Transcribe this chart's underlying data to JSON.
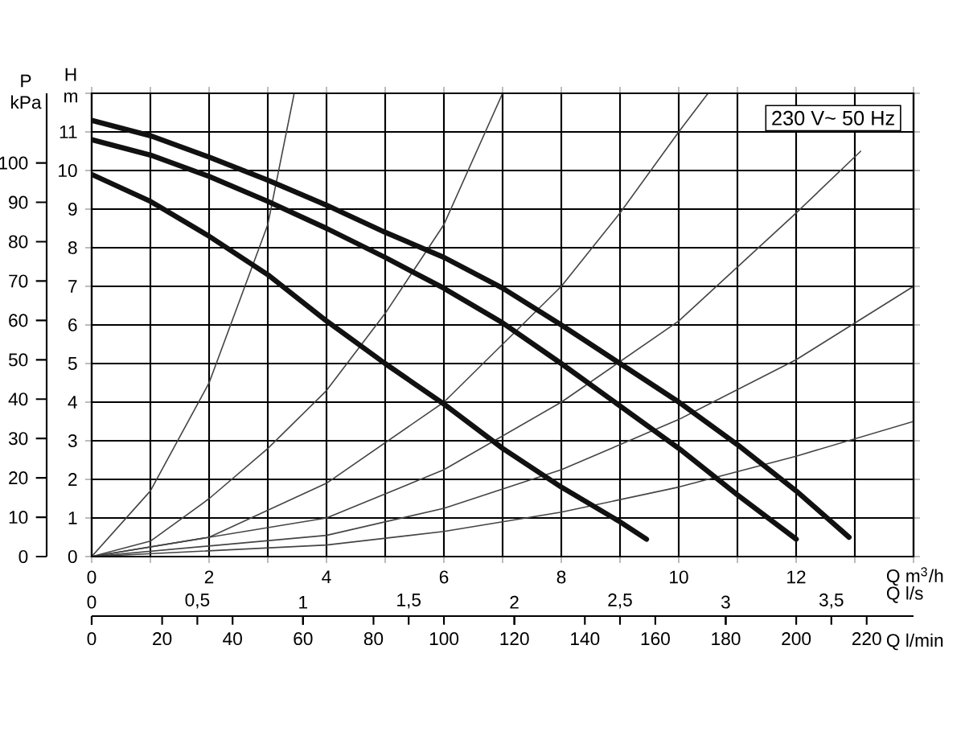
{
  "chart_data": [
    {
      "type": "line",
      "xlabel": "Q m$^{3}$/h",
      "ylabel": "H m",
      "y2label": "P kPa",
      "x2label": "Q l/s",
      "xlim": [
        0,
        14
      ],
      "ylim": [
        0,
        12
      ],
      "y2lim": [
        0,
        117.7
      ],
      "x2lim": [
        0,
        3.889
      ],
      "xticks": [
        0,
        {
          "value": 1,
          "label": null
        },
        2,
        {
          "value": 3,
          "label": null
        },
        4,
        {
          "value": 5,
          "label": null
        },
        6,
        {
          "value": 7,
          "label": null
        },
        8,
        {
          "value": 9,
          "label": null
        },
        10,
        {
          "value": 11,
          "label": null
        },
        12,
        {
          "value": 13,
          "label": null
        },
        {
          "value": 14,
          "label": null
        }
      ],
      "yticks": [
        0,
        1,
        2,
        3,
        4,
        5,
        6,
        7,
        8,
        9,
        10,
        11,
        {
          "value": 12,
          "label": null
        }
      ],
      "y2ticks": [
        0,
        10,
        20,
        30,
        40,
        50,
        60,
        70,
        80,
        90,
        100
      ],
      "x2ticks": [
        0,
        {
          "value": 0.5,
          "label": "0,5"
        },
        1,
        {
          "value": 1.5,
          "label": "1,5"
        },
        2,
        {
          "value": 2.5,
          "label": "2,5"
        },
        3,
        {
          "value": 3.5,
          "label": "3,5"
        }
      ],
      "grid": true,
      "annotations": [
        "230 V~ 50 Hz"
      ],
      "series": [
        {
          "color": "#444444",
          "x": [
            0,
            1,
            2,
            3,
            3.45
          ],
          "values": [
            0,
            1.7,
            4.5,
            8.6,
            12
          ]
        },
        {
          "color": "#444444",
          "x": [
            0,
            1,
            2,
            3,
            4,
            5,
            6,
            7
          ],
          "values": [
            0,
            0.4,
            1.5,
            2.8,
            4.3,
            6.3,
            8.6,
            12
          ]
        },
        {
          "color": "#444444",
          "x": [
            0,
            2,
            4,
            6,
            8,
            9,
            10,
            10.5
          ],
          "values": [
            0,
            0.5,
            1.9,
            4.0,
            7.0,
            8.9,
            11.0,
            12
          ]
        },
        {
          "color": "#444444",
          "x": [
            0,
            4,
            6,
            8,
            10,
            12,
            13.1
          ],
          "values": [
            0,
            1.0,
            2.25,
            4.0,
            6.1,
            8.9,
            10.5
          ]
        },
        {
          "color": "#444444",
          "x": [
            0,
            4,
            6,
            8,
            10,
            12,
            14
          ],
          "values": [
            0,
            0.55,
            1.25,
            2.25,
            3.55,
            5.1,
            7.0
          ]
        },
        {
          "color": "#444444",
          "x": [
            0,
            4,
            6,
            8,
            10,
            12,
            14
          ],
          "values": [
            0,
            0.3,
            0.65,
            1.15,
            1.8,
            2.6,
            3.5
          ]
        }
      ]
    },
    {
      "type": "line",
      "xlabel": "Q l/min",
      "xlim": [
        0,
        233.3
      ],
      "ylim": [
        0,
        12
      ],
      "xticks": [
        0,
        20,
        40,
        60,
        80,
        100,
        120,
        140,
        160,
        180,
        200,
        220
      ],
      "tick_labels": "x",
      "series": [
        {
          "color": "#111111",
          "x": [
            0,
            16.7,
            33.3,
            50,
            66.7,
            83.3,
            100,
            116.7,
            133.3,
            150,
            166.7,
            183.3,
            200,
            215
          ],
          "values": [
            11.3,
            10.9,
            10.35,
            9.75,
            9.1,
            8.4,
            7.75,
            6.95,
            6.0,
            5.0,
            4.0,
            2.9,
            1.7,
            0.5
          ]
        },
        {
          "color": "#111111",
          "x": [
            0,
            16.7,
            33.3,
            50,
            66.7,
            83.3,
            100,
            116.7,
            133.3,
            150,
            166.7,
            183.3,
            200
          ],
          "values": [
            10.8,
            10.4,
            9.85,
            9.2,
            8.5,
            7.75,
            6.95,
            6.05,
            5.0,
            3.9,
            2.8,
            1.6,
            0.45
          ]
        },
        {
          "color": "#111111",
          "x": [
            0,
            16.7,
            33.3,
            50,
            66.7,
            83.3,
            100,
            116.7,
            133.3,
            150,
            157.5
          ],
          "values": [
            9.9,
            9.2,
            8.3,
            7.3,
            6.1,
            5.0,
            3.95,
            2.8,
            1.8,
            0.9,
            0.45
          ]
        }
      ]
    }
  ]
}
